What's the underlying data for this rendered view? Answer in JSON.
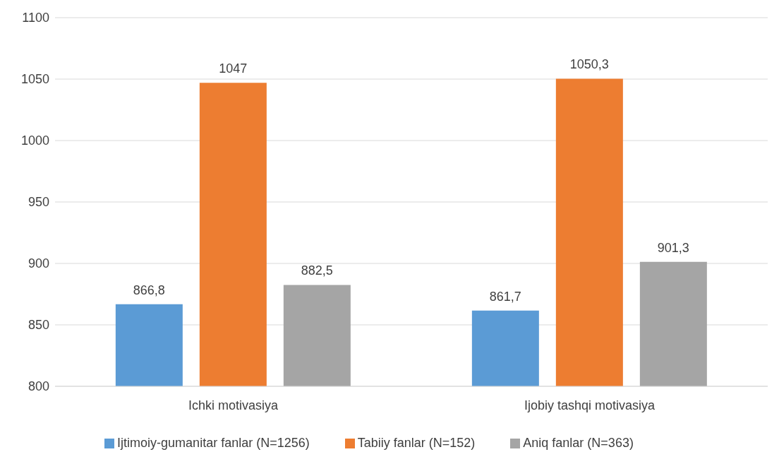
{
  "chart_data": {
    "type": "bar",
    "categories": [
      "Ichki motivasiya",
      "Ijobiy tashqi motivasiya"
    ],
    "series": [
      {
        "name": "Ijtimoiy-gumanitar fanlar (N=1256)",
        "color": "#5b9bd5",
        "values": [
          866.8,
          861.7
        ],
        "value_labels": [
          "866,8",
          "861,7"
        ]
      },
      {
        "name": "Tabiiy fanlar (N=152)",
        "color": "#ed7d31",
        "values": [
          1047,
          1050.3
        ],
        "value_labels": [
          "1047",
          "1050,3"
        ]
      },
      {
        "name": "Aniq fanlar (N=363)",
        "color": "#a5a5a5",
        "values": [
          882.5,
          901.3
        ],
        "value_labels": [
          "882,5",
          "901,3"
        ]
      }
    ],
    "ylim": [
      800,
      1100
    ],
    "yticks": [
      800,
      850,
      900,
      950,
      1000,
      1050,
      1100
    ],
    "grid": "y",
    "legend": "bottom"
  }
}
